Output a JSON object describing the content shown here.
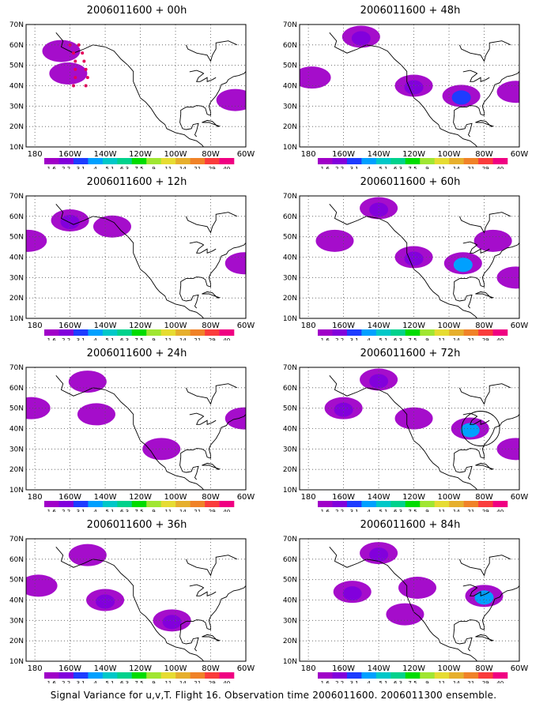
{
  "figure": {
    "footer": "Signal Variance for u,v,T. Flight 16. Observation time 2006011600. 2006011300 ensemble."
  },
  "axes": {
    "y_ticks": [
      "70N",
      "60N",
      "50N",
      "40N",
      "30N",
      "20N",
      "10N"
    ],
    "x_ticks": [
      "180",
      "160W",
      "140W",
      "120W",
      "100W",
      "80W",
      "60W"
    ]
  },
  "colorbar": {
    "labels": [
      "1.6",
      "2.2",
      "3.1",
      "4",
      "5.1",
      "6.3",
      "7.5",
      "9",
      "11",
      "14",
      "21",
      "29",
      "40"
    ],
    "colors": [
      "#a000c8",
      "#8200dc",
      "#1e3cff",
      "#00a0ff",
      "#00c8c8",
      "#00d28c",
      "#00dc00",
      "#a0e632",
      "#e6dc32",
      "#e6af2d",
      "#f08228",
      "#fa3c3c",
      "#f00082"
    ]
  },
  "chart_data": [
    {
      "type": "heatmap",
      "title": "2006011600 + 00h",
      "x_range": [
        -185,
        -60
      ],
      "y_range": [
        10,
        70
      ],
      "features": [
        {
          "lon": -165,
          "lat": 57,
          "level": 1.6
        },
        {
          "lon": -161,
          "lat": 46,
          "level": 1.6
        },
        {
          "lon": -66,
          "lat": 33,
          "level": 1.6
        }
      ],
      "track": [
        [
          -160,
          60
        ],
        [
          -158,
          56
        ],
        [
          -157,
          52
        ],
        [
          -157,
          48
        ],
        [
          -157,
          44
        ],
        [
          -158,
          40
        ],
        [
          -155,
          60
        ],
        [
          -153,
          56
        ],
        [
          -152,
          52
        ],
        [
          -151,
          48
        ],
        [
          -150,
          44
        ],
        [
          -151,
          40
        ]
      ]
    },
    {
      "type": "heatmap",
      "title": "2006011600 + 48h",
      "x_range": [
        -185,
        -60
      ],
      "y_range": [
        10,
        70
      ],
      "features": [
        {
          "lon": -150,
          "lat": 64,
          "level": 2.2
        },
        {
          "lon": -120,
          "lat": 40,
          "level": 2.2
        },
        {
          "lon": -93,
          "lat": 35,
          "level": 3.1
        },
        {
          "lon": -178,
          "lat": 44,
          "level": 1.6
        },
        {
          "lon": -62,
          "lat": 37,
          "level": 1.6
        }
      ]
    },
    {
      "type": "heatmap",
      "title": "2006011600 + 12h",
      "x_range": [
        -185,
        -60
      ],
      "y_range": [
        10,
        70
      ],
      "features": [
        {
          "lon": -160,
          "lat": 58,
          "level": 2.2
        },
        {
          "lon": -136,
          "lat": 55,
          "level": 1.6
        },
        {
          "lon": -184,
          "lat": 48,
          "level": 1.6
        },
        {
          "lon": -61,
          "lat": 37,
          "level": 1.6
        }
      ]
    },
    {
      "type": "heatmap",
      "title": "2006011600 + 60h",
      "x_range": [
        -185,
        -60
      ],
      "y_range": [
        10,
        70
      ],
      "features": [
        {
          "lon": -140,
          "lat": 64,
          "level": 2.2
        },
        {
          "lon": -165,
          "lat": 48,
          "level": 1.6
        },
        {
          "lon": -120,
          "lat": 40,
          "level": 2.2
        },
        {
          "lon": -92,
          "lat": 37,
          "level": 4
        },
        {
          "lon": -75,
          "lat": 48,
          "level": 1.6
        },
        {
          "lon": -62,
          "lat": 30,
          "level": 1.6
        }
      ]
    },
    {
      "type": "heatmap",
      "title": "2006011600 + 24h",
      "x_range": [
        -185,
        -60
      ],
      "y_range": [
        10,
        70
      ],
      "features": [
        {
          "lon": -150,
          "lat": 63,
          "level": 1.6
        },
        {
          "lon": -145,
          "lat": 47,
          "level": 1.6
        },
        {
          "lon": -182,
          "lat": 50,
          "level": 1.6
        },
        {
          "lon": -61,
          "lat": 45,
          "level": 1.6
        },
        {
          "lon": -108,
          "lat": 30,
          "level": 1.6
        }
      ]
    },
    {
      "type": "heatmap",
      "title": "2006011600 + 72h",
      "x_range": [
        -185,
        -60
      ],
      "y_range": [
        10,
        70
      ],
      "features": [
        {
          "lon": -140,
          "lat": 64,
          "level": 2.2
        },
        {
          "lon": -160,
          "lat": 50,
          "level": 2.2
        },
        {
          "lon": -120,
          "lat": 45,
          "level": 1.6
        },
        {
          "lon": -88,
          "lat": 40,
          "level": 4
        },
        {
          "lon": -62,
          "lat": 30,
          "level": 1.6
        }
      ],
      "circle": {
        "lon": -82,
        "lat": 40
      }
    },
    {
      "type": "heatmap",
      "title": "2006011600 + 36h",
      "x_range": [
        -185,
        -60
      ],
      "y_range": [
        10,
        70
      ],
      "features": [
        {
          "lon": -150,
          "lat": 62,
          "level": 1.6
        },
        {
          "lon": -140,
          "lat": 40,
          "level": 2.2
        },
        {
          "lon": -178,
          "lat": 47,
          "level": 1.6
        },
        {
          "lon": -102,
          "lat": 30,
          "level": 2.2
        }
      ]
    },
    {
      "type": "heatmap",
      "title": "2006011600 + 84h",
      "x_range": [
        -185,
        -60
      ],
      "y_range": [
        10,
        70
      ],
      "features": [
        {
          "lon": -140,
          "lat": 63,
          "level": 2.2
        },
        {
          "lon": -155,
          "lat": 44,
          "level": 2.2
        },
        {
          "lon": -118,
          "lat": 46,
          "level": 1.6
        },
        {
          "lon": -80,
          "lat": 42,
          "level": 4
        },
        {
          "lon": -125,
          "lat": 33,
          "level": 1.6
        }
      ]
    }
  ]
}
